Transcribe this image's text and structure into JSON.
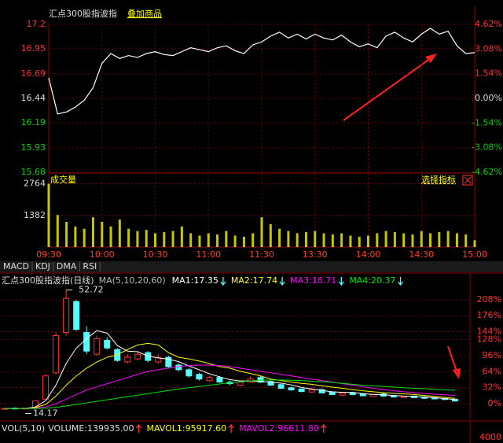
{
  "intraday_header": {
    "title": "汇点300股指波指",
    "overlay": "叠加商品"
  },
  "chart_data": [
    {
      "type": "line",
      "categories": [
        "09:30",
        null,
        null,
        null,
        null,
        null,
        "10:00",
        null,
        null,
        null,
        null,
        null,
        "10:30",
        null,
        null,
        null,
        null,
        null,
        "11:00",
        null,
        null,
        null,
        null,
        null,
        "11:30",
        null,
        null,
        null,
        null,
        null,
        "13:30",
        null,
        null,
        null,
        null,
        null,
        "14:00",
        null,
        null,
        null,
        null,
        null,
        "14:30",
        null,
        null,
        null,
        null,
        null,
        "15:00"
      ],
      "values": [
        16.65,
        16.28,
        16.3,
        16.35,
        16.42,
        16.55,
        16.8,
        16.9,
        16.85,
        16.88,
        16.86,
        16.9,
        16.92,
        16.89,
        16.88,
        16.92,
        16.96,
        16.94,
        16.92,
        16.96,
        16.98,
        16.93,
        16.9,
        16.99,
        17.02,
        17.08,
        17.12,
        17.06,
        17.1,
        17.05,
        17.1,
        17.06,
        17.04,
        17.09,
        17.02,
        16.97,
        17.0,
        16.96,
        17.08,
        17.12,
        17.06,
        17.02,
        17.1,
        17.16,
        17.1,
        17.13,
        16.98,
        16.9,
        16.91
      ],
      "color": "#ffffff",
      "ylim": [
        15.68,
        17.2
      ],
      "yticks": [
        17.2,
        16.95,
        16.69,
        16.44,
        16.19,
        15.93,
        15.68
      ],
      "y2lim": [
        -4.62,
        4.62
      ],
      "y2ticks": [
        {
          "value": 4.62,
          "label": "4.62%"
        },
        {
          "value": 3.08,
          "label": "3.08%"
        },
        {
          "value": 1.54,
          "label": "1.54%"
        },
        {
          "value": 0,
          "label": "0.00%"
        },
        {
          "value": -1.54,
          "label": "-1.54%"
        },
        {
          "value": -3.08,
          "label": "-3.08%"
        },
        {
          "value": -4.62,
          "label": "-4.62%"
        }
      ],
      "grid": true,
      "up_color": "#ff3232",
      "down_color": "#00d200"
    },
    {
      "type": "bar",
      "title": "成交量",
      "annotation": "选择指标",
      "color": "#c8c800",
      "values": [
        2764,
        1400,
        1100,
        900,
        800,
        1300,
        1100,
        900,
        1200,
        800,
        700,
        750,
        600,
        650,
        700,
        900,
        600,
        500,
        600,
        550,
        700,
        500,
        450,
        600,
        1300,
        1000,
        800,
        700,
        600,
        650,
        700,
        600,
        550,
        600,
        500,
        450,
        500,
        600,
        700,
        650,
        600,
        550,
        700,
        600,
        650,
        700,
        600,
        550,
        300
      ],
      "ylim": [
        0,
        3091
      ],
      "yticks": [
        2764,
        1382
      ]
    },
    {
      "type": "candlestick",
      "title": "汇点300股指波指(日线)",
      "subtitle": "MA(5,10,20,60)",
      "up_color": "#ff3232",
      "down_color": "#54fcfc",
      "open": [
        14.3,
        14.6,
        14.4,
        14.8,
        17.5,
        26.0,
        39.0,
        49.0,
        39.0,
        32.0,
        36.5,
        33.5,
        29.5,
        30.5,
        32.5,
        29.5,
        31.0,
        28.5,
        27.0,
        25.5,
        23.5,
        24.5,
        23.0,
        22.0,
        23.0,
        24.5,
        23.2,
        22.2,
        21.2,
        20.8,
        19.8,
        20.6,
        19.8,
        18.8,
        19.6,
        19.2,
        18.4,
        19.2,
        18.6,
        18.0,
        18.5,
        18.2,
        17.9,
        17.7,
        17.5
      ],
      "high": [
        14.8,
        14.9,
        14.8,
        17.2,
        25.5,
        39.0,
        52.72,
        49.5,
        41.0,
        38.0,
        37.5,
        34.0,
        32.0,
        33.0,
        33.0,
        32.0,
        31.5,
        29.0,
        27.5,
        26.0,
        25.0,
        25.0,
        23.5,
        23.5,
        24.8,
        25.0,
        23.5,
        22.5,
        21.5,
        21.0,
        21.0,
        21.0,
        20.0,
        19.8,
        19.8,
        19.5,
        19.3,
        19.5,
        18.9,
        18.7,
        18.7,
        18.4,
        18.1,
        17.9,
        17.6
      ],
      "low": [
        14.17,
        14.2,
        14.3,
        14.7,
        17.0,
        25.5,
        38.0,
        39.5,
        32.0,
        31.5,
        33.5,
        29.5,
        29.0,
        30.0,
        29.5,
        29.0,
        27.5,
        26.5,
        24.5,
        23.5,
        23.2,
        22.8,
        22.0,
        21.8,
        22.8,
        22.8,
        21.8,
        20.8,
        20.2,
        19.7,
        19.6,
        19.3,
        18.8,
        18.6,
        18.8,
        18.4,
        18.2,
        18.3,
        18.0,
        17.8,
        17.8,
        17.6,
        17.4,
        17.2,
        16.7
      ],
      "close": [
        14.5,
        14.4,
        14.6,
        17.0,
        25.0,
        38.0,
        50.0,
        40.0,
        33.0,
        37.0,
        34.0,
        30.0,
        31.0,
        32.0,
        30.0,
        31.0,
        28.0,
        27.0,
        25.0,
        24.0,
        24.5,
        23.0,
        22.5,
        23.0,
        24.0,
        23.0,
        22.0,
        21.0,
        20.5,
        20.0,
        20.5,
        19.5,
        19.0,
        19.5,
        19.0,
        18.6,
        19.0,
        18.5,
        18.2,
        18.4,
        18.0,
        17.8,
        17.6,
        17.4,
        16.9
      ],
      "series": [
        {
          "name": "MA1:17.35",
          "color": "#ffffff",
          "values": [
            14.5,
            14.5,
            14.5,
            15.0,
            17.0,
            22.0,
            29.0,
            34.0,
            37.0,
            39.6,
            38.8,
            34.8,
            33.0,
            32.8,
            31.4,
            30.8,
            30.4,
            29.6,
            28.2,
            27.0,
            25.7,
            24.7,
            23.8,
            23.4,
            23.4,
            23.2,
            23.0,
            22.7,
            22.1,
            21.3,
            20.8,
            20.3,
            19.9,
            19.7,
            19.7,
            19.3,
            19.0,
            18.9,
            18.7,
            18.5,
            18.4,
            18.2,
            18.0,
            17.7,
            17.35
          ]
        },
        {
          "name": "MA2:17.74",
          "color": "#ffff00",
          "values": [
            14.5,
            14.5,
            14.5,
            14.8,
            15.8,
            18.5,
            22.0,
            25.0,
            27.5,
            29.5,
            31.0,
            31.8,
            33.5,
            35.0,
            35.5,
            35.0,
            32.5,
            31.0,
            30.5,
            29.8,
            29.0,
            28.0,
            27.5,
            26.5,
            25.8,
            25.0,
            24.0,
            23.5,
            23.0,
            22.6,
            22.3,
            21.8,
            21.4,
            21.0,
            20.6,
            20.2,
            19.9,
            19.6,
            19.4,
            19.2,
            19.0,
            18.7,
            18.4,
            18.1,
            17.74
          ]
        },
        {
          "name": "MA3:18.71",
          "color": "#ff00ff",
          "values": [
            14.5,
            14.5,
            14.5,
            14.6,
            15.0,
            16.0,
            17.5,
            19.0,
            20.5,
            21.5,
            22.5,
            23.5,
            24.5,
            25.5,
            26.5,
            27.0,
            27.5,
            28.0,
            28.3,
            28.5,
            28.5,
            28.3,
            28.0,
            27.5,
            27.0,
            26.5,
            26.0,
            25.5,
            25.0,
            24.5,
            24.0,
            23.5,
            23.0,
            22.5,
            22.0,
            21.5,
            21.0,
            20.6,
            20.2,
            19.9,
            19.6,
            19.3,
            19.1,
            18.9,
            18.71
          ]
        },
        {
          "name": "MA4:20.37",
          "color": "#00e600",
          "values": [
            14.5,
            14.5,
            14.5,
            14.5,
            14.6,
            14.9,
            15.3,
            15.8,
            16.3,
            16.8,
            17.3,
            17.8,
            18.3,
            18.8,
            19.3,
            19.8,
            20.3,
            20.8,
            21.2,
            21.6,
            22.0,
            22.4,
            22.8,
            23.1,
            23.4,
            23.6,
            23.7,
            23.7,
            23.6,
            23.5,
            23.3,
            23.1,
            22.9,
            22.6,
            22.3,
            22.0,
            21.8,
            21.6,
            21.4,
            21.2,
            21.0,
            20.9,
            20.7,
            20.5,
            20.37
          ]
        }
      ],
      "ylim": [
        11.75,
        53.6
      ],
      "y2lim": [
        -27,
        233
      ],
      "y2ticks": [
        {
          "value": 208,
          "label": "208%"
        },
        {
          "value": 176,
          "label": "176%"
        },
        {
          "value": 144,
          "label": "144%"
        },
        {
          "value": 128,
          "label": "128%"
        },
        {
          "value": 96,
          "label": "96%"
        },
        {
          "value": 64,
          "label": "64%"
        },
        {
          "value": 32,
          "label": "32%"
        },
        {
          "value": 0,
          "label": "0%"
        }
      ]
    }
  ],
  "tabs": [
    "MACD",
    "KDJ",
    "DMA",
    "RSI"
  ],
  "vol_indicator": {
    "labels": [
      "VOL(5,10)",
      "VOLUME:139935.00",
      "MAVOL1:95917.60",
      "MAVOL2:96611.80"
    ],
    "axis_label": "4000"
  }
}
